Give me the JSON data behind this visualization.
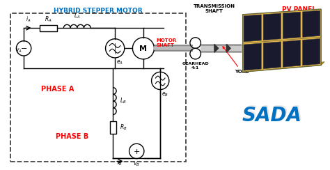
{
  "title": "HYBRID STEPPER MOTOR",
  "title_color": "#0070C0",
  "bg_color": "#ffffff",
  "phase_a_label": "PHASE A",
  "phase_b_label": "PHASE B",
  "phase_color": "#FF0000",
  "motor_shaft_label": "MOTOR\nSHAFT",
  "motor_shaft_color": "#FF0000",
  "transmission_label": "TRANSMISSION\nSHAFT",
  "pv_panel_label": "PV PANEL",
  "pv_panel_color": "#FF0000",
  "gearhead_label": "GEARHEAD\n4:1",
  "yoke_label": "YOKE",
  "sada_label": "SADA",
  "sada_color": "#0070C0",
  "dashed_box_color": "#555555",
  "circuit_color": "#000000",
  "figsize": [
    4.74,
    2.44
  ],
  "dpi": 100
}
